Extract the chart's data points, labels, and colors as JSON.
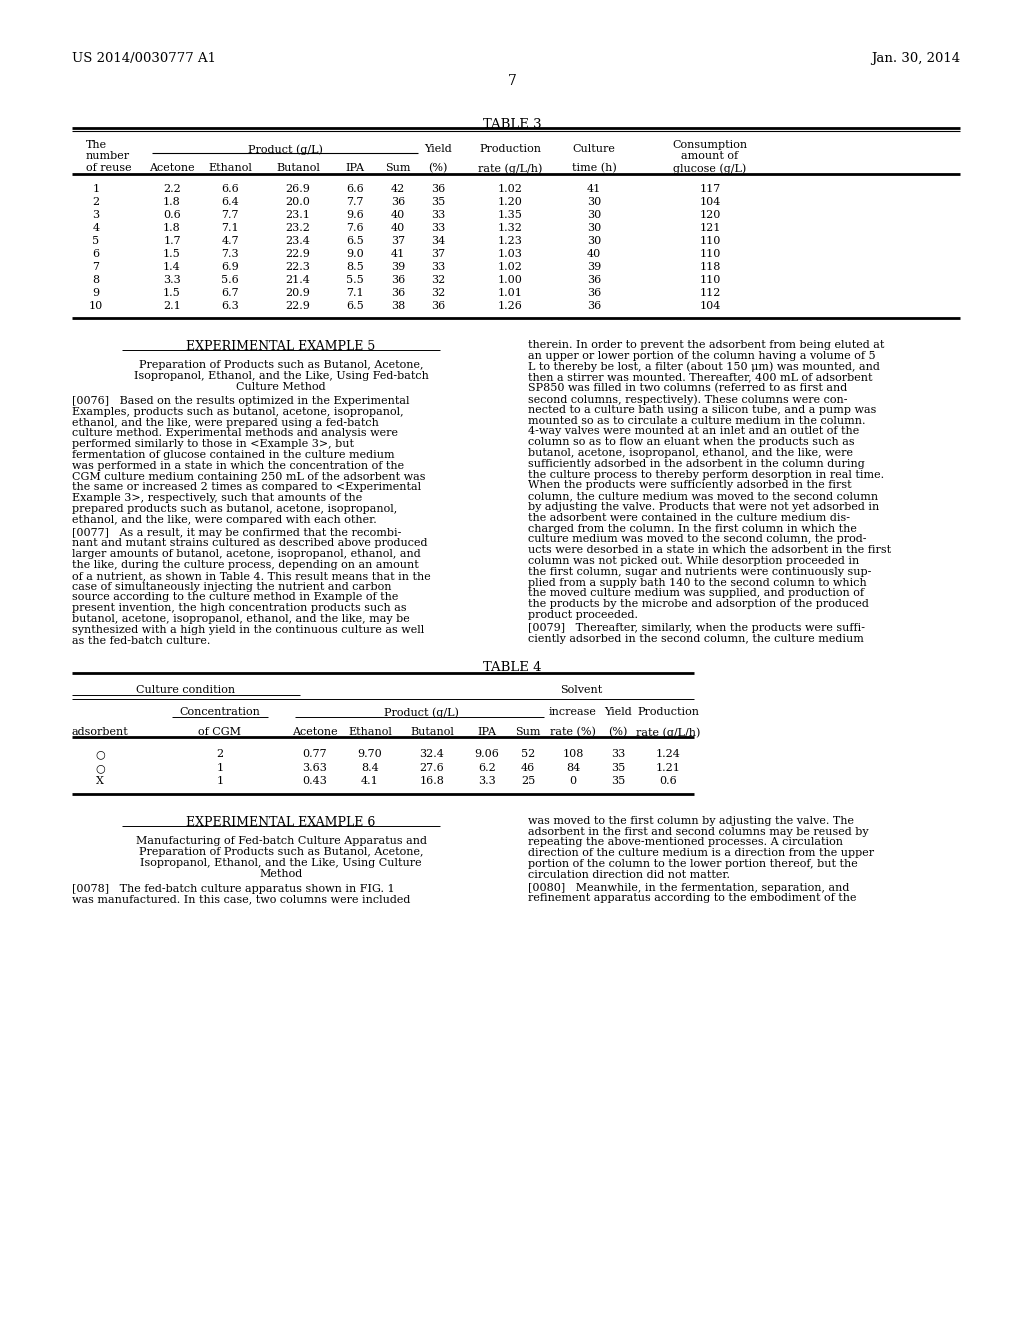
{
  "header_left": "US 2014/0030777 A1",
  "header_right": "Jan. 30, 2014",
  "page_number": "7",
  "bg_color": "#ffffff",
  "table3_title": "TABLE 3",
  "table3_data": [
    [
      "1",
      "2.2",
      "6.6",
      "26.9",
      "6.6",
      "42",
      "36",
      "1.02",
      "41",
      "117"
    ],
    [
      "2",
      "1.8",
      "6.4",
      "20.0",
      "7.7",
      "36",
      "35",
      "1.20",
      "30",
      "104"
    ],
    [
      "3",
      "0.6",
      "7.7",
      "23.1",
      "9.6",
      "40",
      "33",
      "1.35",
      "30",
      "120"
    ],
    [
      "4",
      "1.8",
      "7.1",
      "23.2",
      "7.6",
      "40",
      "33",
      "1.32",
      "30",
      "121"
    ],
    [
      "5",
      "1.7",
      "4.7",
      "23.4",
      "6.5",
      "37",
      "34",
      "1.23",
      "30",
      "110"
    ],
    [
      "6",
      "1.5",
      "7.3",
      "22.9",
      "9.0",
      "41",
      "37",
      "1.03",
      "40",
      "110"
    ],
    [
      "7",
      "1.4",
      "6.9",
      "22.3",
      "8.5",
      "39",
      "33",
      "1.02",
      "39",
      "118"
    ],
    [
      "8",
      "3.3",
      "5.6",
      "21.4",
      "5.5",
      "36",
      "32",
      "1.00",
      "36",
      "110"
    ],
    [
      "9",
      "1.5",
      "6.7",
      "20.9",
      "7.1",
      "36",
      "32",
      "1.01",
      "36",
      "112"
    ],
    [
      "10",
      "2.1",
      "6.3",
      "22.9",
      "6.5",
      "38",
      "36",
      "1.26",
      "36",
      "104"
    ]
  ],
  "table4_title": "TABLE 4",
  "table4_data": [
    [
      "○",
      "2",
      "0.77",
      "9.70",
      "32.4",
      "9.06",
      "52",
      "108",
      "33",
      "1.24"
    ],
    [
      "○",
      "1",
      "3.63",
      "8.4",
      "27.6",
      "6.2",
      "46",
      "84",
      "35",
      "1.21"
    ],
    [
      "X",
      "1",
      "0.43",
      "4.1",
      "16.8",
      "3.3",
      "25",
      "0",
      "35",
      "0.6"
    ]
  ],
  "exp5_title": "EXPERIMENTAL EXAMPLE 5",
  "exp5_sub1": "Preparation of Products such as Butanol, Acetone,",
  "exp5_sub2": "Isopropanol, Ethanol, and the Like, Using Fed-batch",
  "exp5_sub3": "Culture Method",
  "p076_lines": [
    "[0076]   Based on the results optimized in the Experimental",
    "Examples, products such as butanol, acetone, isopropanol,",
    "ethanol, and the like, were prepared using a fed-batch",
    "culture method. Experimental methods and analysis were",
    "performed similarly to those in <Example 3>, but",
    "fermentation of glucose contained in the culture medium",
    "was performed in a state in which the concentration of the",
    "CGM culture medium containing 250 mL of the adsorbent was",
    "the same or increased 2 times as compared to <Experimental",
    "Example 3>, respectively, such that amounts of the",
    "prepared products such as butanol, acetone, isopropanol,",
    "ethanol, and the like, were compared with each other."
  ],
  "p077_lines": [
    "[0077]   As a result, it may be confirmed that the recombi-",
    "nant and mutant strains cultured as described above produced",
    "larger amounts of butanol, acetone, isopropanol, ethanol, and",
    "the like, during the culture process, depending on an amount",
    "of a nutrient, as shown in Table 4. This result means that in the",
    "case of simultaneously injecting the nutrient and carbon",
    "source according to the culture method in Example of the",
    "present invention, the high concentration products such as",
    "butanol, acetone, isopropanol, ethanol, and the like, may be",
    "synthesized with a high yield in the continuous culture as well",
    "as the fed-batch culture."
  ],
  "r_col1_lines": [
    "therein. In order to prevent the adsorbent from being eluted at",
    "an upper or lower portion of the column having a volume of 5",
    "L to thereby be lost, a filter (about 150 μm) was mounted, and",
    "then a stirrer was mounted. Thereafter, 400 mL of adsorbent",
    "SP850 was filled in two columns (referred to as first and",
    "second columns, respectively). These columns were con-",
    "nected to a culture bath using a silicon tube, and a pump was",
    "mounted so as to circulate a culture medium in the column.",
    "4-way valves were mounted at an inlet and an outlet of the",
    "column so as to flow an eluant when the products such as",
    "butanol, acetone, isopropanol, ethanol, and the like, were",
    "sufficiently adsorbed in the adsorbent in the column during",
    "the culture process to thereby perform desorption in real time.",
    "When the products were sufficiently adsorbed in the first",
    "column, the culture medium was moved to the second column",
    "by adjusting the valve. Products that were not yet adsorbed in",
    "the adsorbent were contained in the culture medium dis-",
    "charged from the column. In the first column in which the",
    "culture medium was moved to the second column, the prod-",
    "ucts were desorbed in a state in which the adsorbent in the first",
    "column was not picked out. While desorption proceeded in",
    "the first column, sugar and nutrients were continuously sup-",
    "plied from a supply bath 140 to the second column to which",
    "the moved culture medium was supplied, and production of",
    "the products by the microbe and adsorption of the produced",
    "product proceeded."
  ],
  "r_col2_lines": [
    "[0079]   Thereafter, similarly, when the products were suffi-",
    "ciently adsorbed in the second column, the culture medium"
  ],
  "exp6_title": "EXPERIMENTAL EXAMPLE 6",
  "exp6_sub1": "Manufacturing of Fed-batch Culture Apparatus and",
  "exp6_sub2": "Preparation of Products such as Butanol, Acetone,",
  "exp6_sub3": "Isopropanol, Ethanol, and the Like, Using Culture",
  "exp6_sub4": "Method",
  "p078_lines": [
    "[0078]   The fed-batch culture apparatus shown in FIG. 1",
    "was manufactured. In this case, two columns were included"
  ],
  "r_col3_lines": [
    "was moved to the first column by adjusting the valve. The",
    "adsorbent in the first and second columns may be reused by",
    "repeating the above-mentioned processes. A circulation",
    "direction of the culture medium is a direction from the upper",
    "portion of the column to the lower portion thereof, but the",
    "circulation direction did not matter."
  ],
  "r_col4_lines": [
    "[0080]   Meanwhile, in the fermentation, separation, and",
    "refinement apparatus according to the embodiment of the"
  ]
}
